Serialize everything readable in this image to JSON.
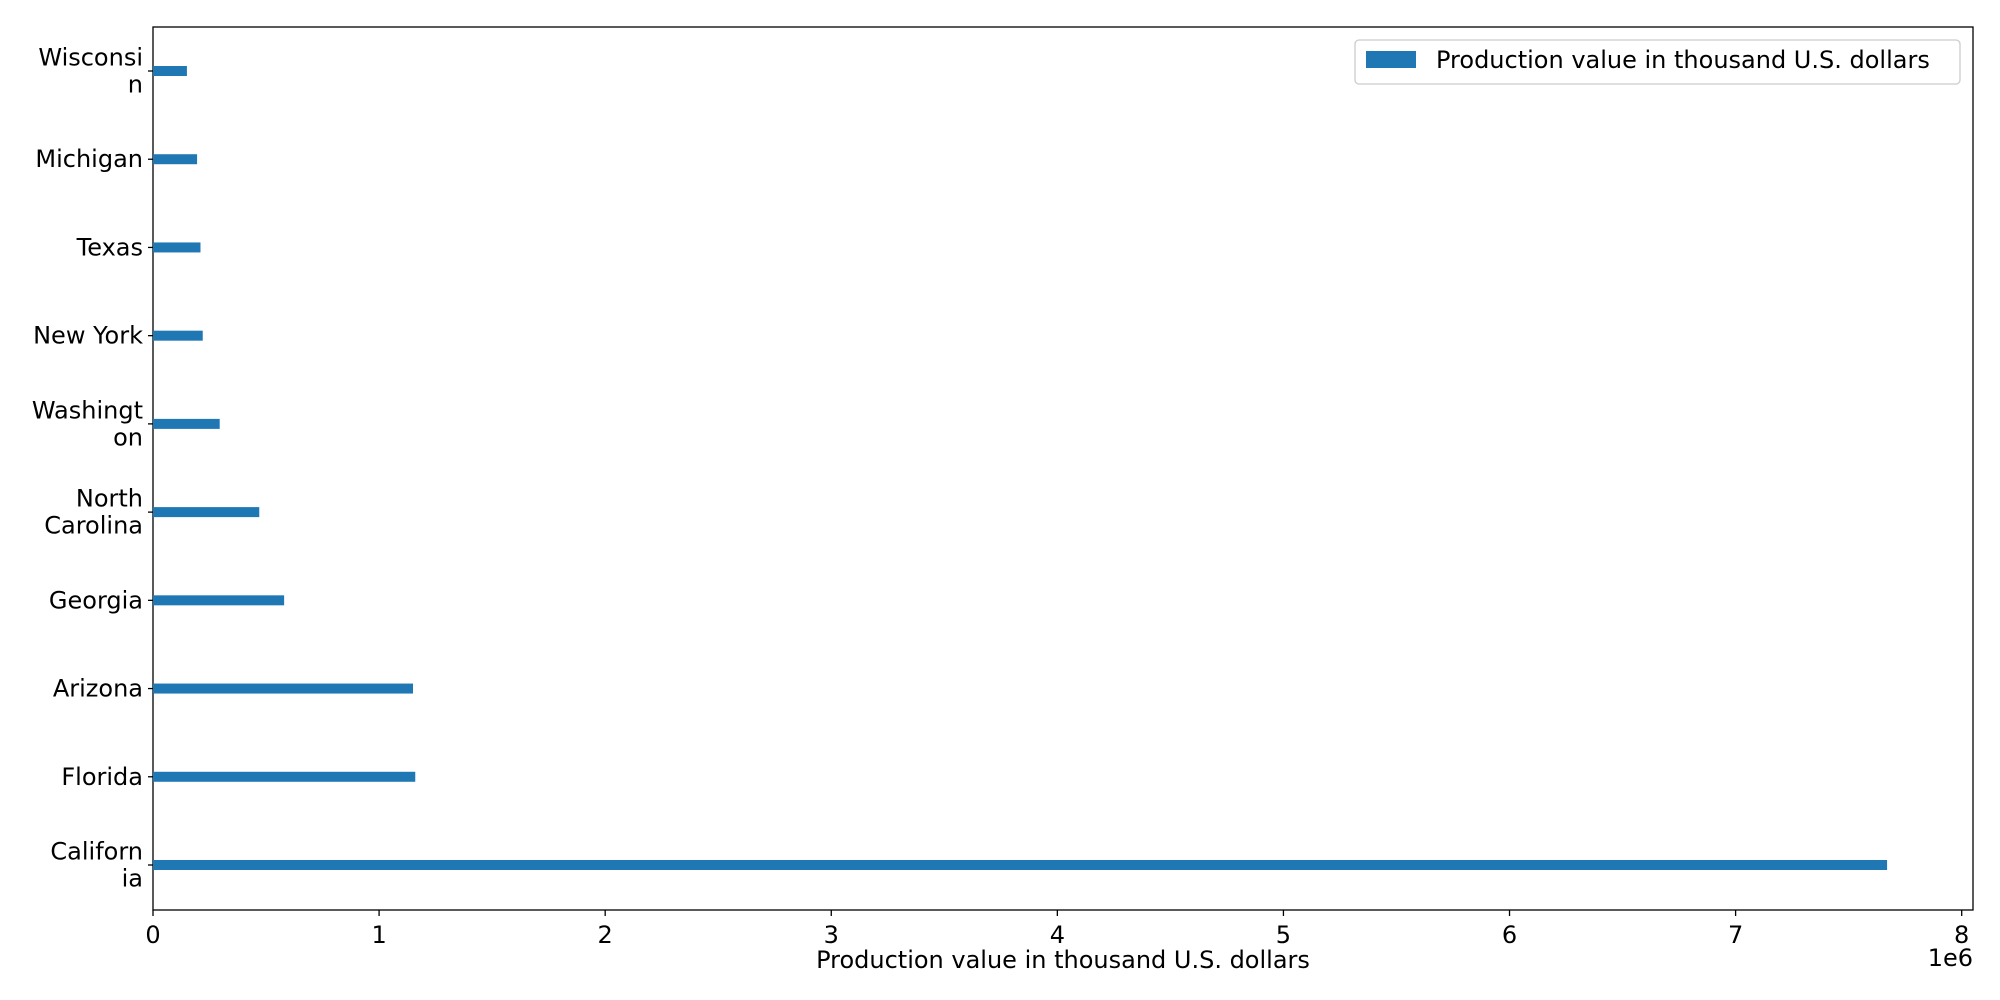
{
  "chart_data": {
    "type": "bar",
    "orientation": "horizontal",
    "categories": [
      [
        "Californ",
        "ia"
      ],
      [
        "Florida"
      ],
      [
        "Arizona"
      ],
      [
        "Georgia"
      ],
      [
        "North",
        "Carolina"
      ],
      [
        "Washingt",
        "on"
      ],
      [
        "New York"
      ],
      [
        "Texas"
      ],
      [
        "Michigan"
      ],
      [
        "Wisconsi",
        "n"
      ]
    ],
    "values": [
      7670000,
      1160000,
      1150000,
      580000,
      470000,
      295000,
      220000,
      210000,
      195000,
      150000
    ],
    "series": [
      {
        "name": "Production value in thousand U.S. dollars",
        "color": "#1f77b4"
      }
    ],
    "xlabel": "Production value in thousand U.S. dollars",
    "ylabel": "",
    "xlim": [
      0,
      8050000
    ],
    "xticks": [
      0,
      1000000,
      2000000,
      3000000,
      4000000,
      5000000,
      6000000,
      7000000,
      8000000
    ],
    "xtick_labels": [
      "0",
      "1",
      "2",
      "3",
      "4",
      "5",
      "6",
      "7",
      "8"
    ],
    "offset_text": "1e6",
    "legend_position": "top-right",
    "grid": false
  }
}
